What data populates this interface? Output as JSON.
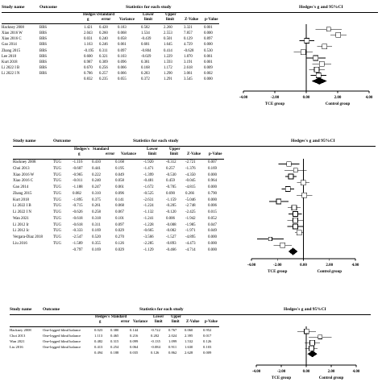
{
  "panels": [
    {
      "id": "bbs",
      "headers": {
        "study": "Study name",
        "outcome": "Outcome",
        "stats_group": "Statistics for each study",
        "plot_group": "Hedges's g and 95%CI",
        "col_g": [
          "Hedges's",
          "g"
        ],
        "col_se": [
          "Standard",
          "error"
        ],
        "col_var": [
          "",
          "Variance"
        ],
        "col_lower": [
          "Lower",
          "limit"
        ],
        "col_upper": [
          "Upper",
          "limit"
        ],
        "col_z": [
          "",
          "Z-Value"
        ],
        "col_p": [
          "",
          "p-Value"
        ]
      },
      "rows": [
        {
          "study": "Hackney 2008",
          "outcome": "BBS",
          "g": "1.421",
          "se": "0.428",
          "var": "0.183",
          "lower": "0.582",
          "upper": "2.260",
          "z": "3.321",
          "p": "0.001"
        },
        {
          "study": "Xiao 2016 W",
          "outcome": "BBS",
          "g": "2.043",
          "se": "0.260",
          "var": "0.068",
          "lower": "1.534",
          "upper": "2.553",
          "z": "7.857",
          "p": "0.000"
        },
        {
          "study": "Xiao 2016 C",
          "outcome": "BBS",
          "g": "0.031",
          "se": "0.240",
          "var": "0.058",
          "lower": "-0.439",
          "upper": "0.501",
          "z": "0.129",
          "p": "0.897"
        },
        {
          "study": "Gao 2014",
          "outcome": "BBS",
          "g": "1.163",
          "se": "0.246",
          "var": "0.061",
          "lower": "0.681",
          "upper": "1.645",
          "z": "4.729",
          "p": "0.000"
        },
        {
          "study": "Zhang 2015",
          "outcome": "BBS",
          "g": "-0.195",
          "se": "0.311",
          "var": "0.097",
          "lower": "-0.804",
          "upper": "0.414",
          "z": "-0.628",
          "p": "0.530"
        },
        {
          "study": "Lee 2018",
          "outcome": "BBS",
          "g": "0.600",
          "se": "0.321",
          "var": "0.103",
          "lower": "-0.029",
          "upper": "1.229",
          "z": "1.870",
          "p": "0.061"
        },
        {
          "study": "Kurt 2018",
          "outcome": "BBS",
          "g": "0.987",
          "se": "0.309",
          "var": "0.096",
          "lower": "0.381",
          "upper": "1.593",
          "z": "3.191",
          "p": "0.001"
        },
        {
          "study": "Li 2022 I B",
          "outcome": "BBS",
          "g": "0.670",
          "se": "0.256",
          "var": "0.066",
          "lower": "0.168",
          "upper": "1.172",
          "z": "2.618",
          "p": "0.009"
        },
        {
          "study": "Li 2022 I N",
          "outcome": "BBS",
          "g": "0.786",
          "se": "0.257",
          "var": "0.066",
          "lower": "0.283",
          "upper": "1.290",
          "z": "3.061",
          "p": "0.002"
        },
        {
          "study": "",
          "outcome": "",
          "g": "0.832",
          "se": "0.235",
          "var": "0.055",
          "lower": "0.372",
          "upper": "1.291",
          "z": "3.545",
          "p": "0.000",
          "summary": true
        }
      ],
      "axis": {
        "min": -4,
        "max": 4,
        "ticks": [
          "-4.00",
          "-2.00",
          "0.00",
          "2.00",
          "4.00"
        ],
        "left_label": "TCE group",
        "right_label": "Control group"
      }
    },
    {
      "id": "tug",
      "headers": {
        "study": "Study name",
        "outcome": "Outcome",
        "stats_group": "Statistics for each study",
        "plot_group": "Hedges's g and 95%CI",
        "col_g": [
          "Hedges's",
          "g"
        ],
        "col_se": [
          "Standard",
          "error"
        ],
        "col_var": [
          "",
          "Variance"
        ],
        "col_lower": [
          "Lower",
          "limit"
        ],
        "col_upper": [
          "Upper",
          "limit"
        ],
        "col_z": [
          "",
          "Z-Value"
        ],
        "col_p": [
          "",
          "p-Value"
        ]
      },
      "rows": [
        {
          "study": "Hackney 2008",
          "outcome": "TUG",
          "g": "-1.116",
          "se": "0.410",
          "var": "0.168",
          "lower": "-1.920",
          "upper": "-0.312",
          "z": "-2.721",
          "p": "0.007"
        },
        {
          "study": "Choi 2013",
          "outcome": "TUG",
          "g": "-0.607",
          "se": "0.441",
          "var": "0.195",
          "lower": "-1.471",
          "upper": "0.257",
          "z": "-1.376",
          "p": "0.169"
        },
        {
          "study": "Xiao 2016 W",
          "outcome": "TUG",
          "g": "-0.965",
          "se": "0.222",
          "var": "0.049",
          "lower": "-1.399",
          "upper": "-0.530",
          "z": "-4.350",
          "p": "0.000"
        },
        {
          "study": "Xiao 2016 C",
          "outcome": "TUG",
          "g": "-0.011",
          "se": "0.240",
          "var": "0.058",
          "lower": "-0.481",
          "upper": "0.459",
          "z": "-0.045",
          "p": "0.964"
        },
        {
          "study": "Gao 2014",
          "outcome": "TUG",
          "g": "-1.188",
          "se": "0.247",
          "var": "0.061",
          "lower": "-1.672",
          "outcome_alt": "",
          "upper": "-0.705",
          "z": "-4.815",
          "p": "0.000"
        },
        {
          "study": "Zhang 2015",
          "outcome": "TUG",
          "g": "0.082",
          "se": "0.310",
          "var": "0.096",
          "lower": "-0.525",
          "upper": "0.690",
          "z": "0.266",
          "p": "0.790"
        },
        {
          "study": "Kurt 2018",
          "outcome": "TUG",
          "g": "-1.895",
          "se": "0.375",
          "var": "0.141",
          "lower": "-2.631",
          "upper": "-1.159",
          "z": "-5.046",
          "p": "0.000"
        },
        {
          "study": "Li 2022 I B",
          "outcome": "TUG",
          "g": "-0.715",
          "se": "0.261",
          "var": "0.068",
          "lower": "-1.224",
          "upper": "-0.205",
          "z": "-2.748",
          "p": "0.006"
        },
        {
          "study": "Li 2022 I N",
          "outcome": "TUG",
          "g": "-0.626",
          "se": "0.258",
          "var": "0.067",
          "lower": "-1.132",
          "upper": "-0.120",
          "z": "-2.425",
          "p": "0.015"
        },
        {
          "study": "Wan 2021",
          "outcome": "TUG",
          "g": "-0.618",
          "se": "0.318",
          "var": "0.101",
          "lower": "-1.241",
          "upper": "0.006",
          "z": "-1.942",
          "p": "0.052"
        },
        {
          "study": "Li 2012 Ir",
          "outcome": "TUG",
          "g": "-0.618",
          "se": "0.311",
          "var": "0.097",
          "lower": "-1.228",
          "upper": "-0.008",
          "z": "-1.985",
          "p": "0.047"
        },
        {
          "study": "Li 2012 Ic",
          "outcome": "TUG",
          "g": "-0.333",
          "se": "0.169",
          "var": "0.029",
          "lower": "-0.665",
          "upper": "-0.002",
          "z": "-1.971",
          "p": "0.049"
        },
        {
          "study": "Vergara-Diaz 2018",
          "outcome": "TUG",
          "g": "-2.547",
          "se": "0.520",
          "var": "0.270",
          "lower": "-3.566",
          "upper": "-1.527",
          "z": "-4.895",
          "p": "0.000"
        },
        {
          "study": "Liu 2016",
          "outcome": "TUG",
          "g": "-1.589",
          "se": "0.355",
          "var": "0.126",
          "lower": "-2.285",
          "upper": "-0.893",
          "z": "-4.473",
          "p": "0.000"
        },
        {
          "study": "",
          "outcome": "",
          "g": "-0.797",
          "se": "0.169",
          "var": "0.029",
          "lower": "-1.129",
          "upper": "-0.466",
          "z": "-4.714",
          "p": "0.000",
          "summary": true
        }
      ],
      "axis": {
        "min": -4,
        "max": 4,
        "ticks": [
          "-4.00",
          "-2.00",
          "0.00",
          "2.00",
          "4.00"
        ],
        "left_label": "TCE group",
        "right_label": "Control group"
      }
    },
    {
      "id": "olb",
      "headers": {
        "study": "Study name",
        "outcome": "Outcome",
        "stats_group": "Statistics for each study",
        "plot_group": "Hedges's g and 95%CI",
        "col_g": [
          "Hedges's",
          "g"
        ],
        "col_se": [
          "Standard",
          "error"
        ],
        "col_var": [
          "",
          "Variance"
        ],
        "col_lower": [
          "Lower",
          "limit"
        ],
        "col_upper": [
          "Upper",
          "limit"
        ],
        "col_z": [
          "",
          "Z-Value"
        ],
        "col_p": [
          "",
          "p-Value"
        ]
      },
      "rows": [
        {
          "study": "Hackney 2008",
          "outcome": "One-legged blind balance",
          "g": "0.023",
          "se": "0.380",
          "var": "0.144",
          "lower": "-0.722",
          "upper": "0.767",
          "z": "0.060",
          "p": "0.952"
        },
        {
          "study": "Choi 2013",
          "outcome": "One-legged blind balance",
          "g": "1.113",
          "se": "0.465",
          "var": "0.216",
          "lower": "0.202",
          "upper": "2.024",
          "z": "2.395",
          "p": "0.017"
        },
        {
          "study": "Wan 2021",
          "outcome": "One-legged blind balance",
          "g": "0.482",
          "se": "0.315",
          "var": "0.099",
          "lower": "-0.135",
          "upper": "1.099",
          "z": "1.532",
          "p": "0.126"
        },
        {
          "study": "Liu 2016",
          "outcome": "One-legged blind balance",
          "g": "0.413",
          "se": "0.254",
          "var": "0.064",
          "lower": "-0.084",
          "upper": "0.911",
          "z": "1.630",
          "p": "0.103"
        },
        {
          "study": "",
          "outcome": "",
          "g": "0.494",
          "se": "0.188",
          "var": "0.035",
          "lower": "0.126",
          "upper": "0.862",
          "z": "2.628",
          "p": "0.009",
          "summary": true
        }
      ],
      "axis": {
        "min": -4,
        "max": 4,
        "ticks": [
          "-4.00",
          "-2.00",
          "0.00",
          "2.00",
          "4.00"
        ],
        "left_label": "TCE group",
        "right_label": "Control group"
      }
    }
  ]
}
